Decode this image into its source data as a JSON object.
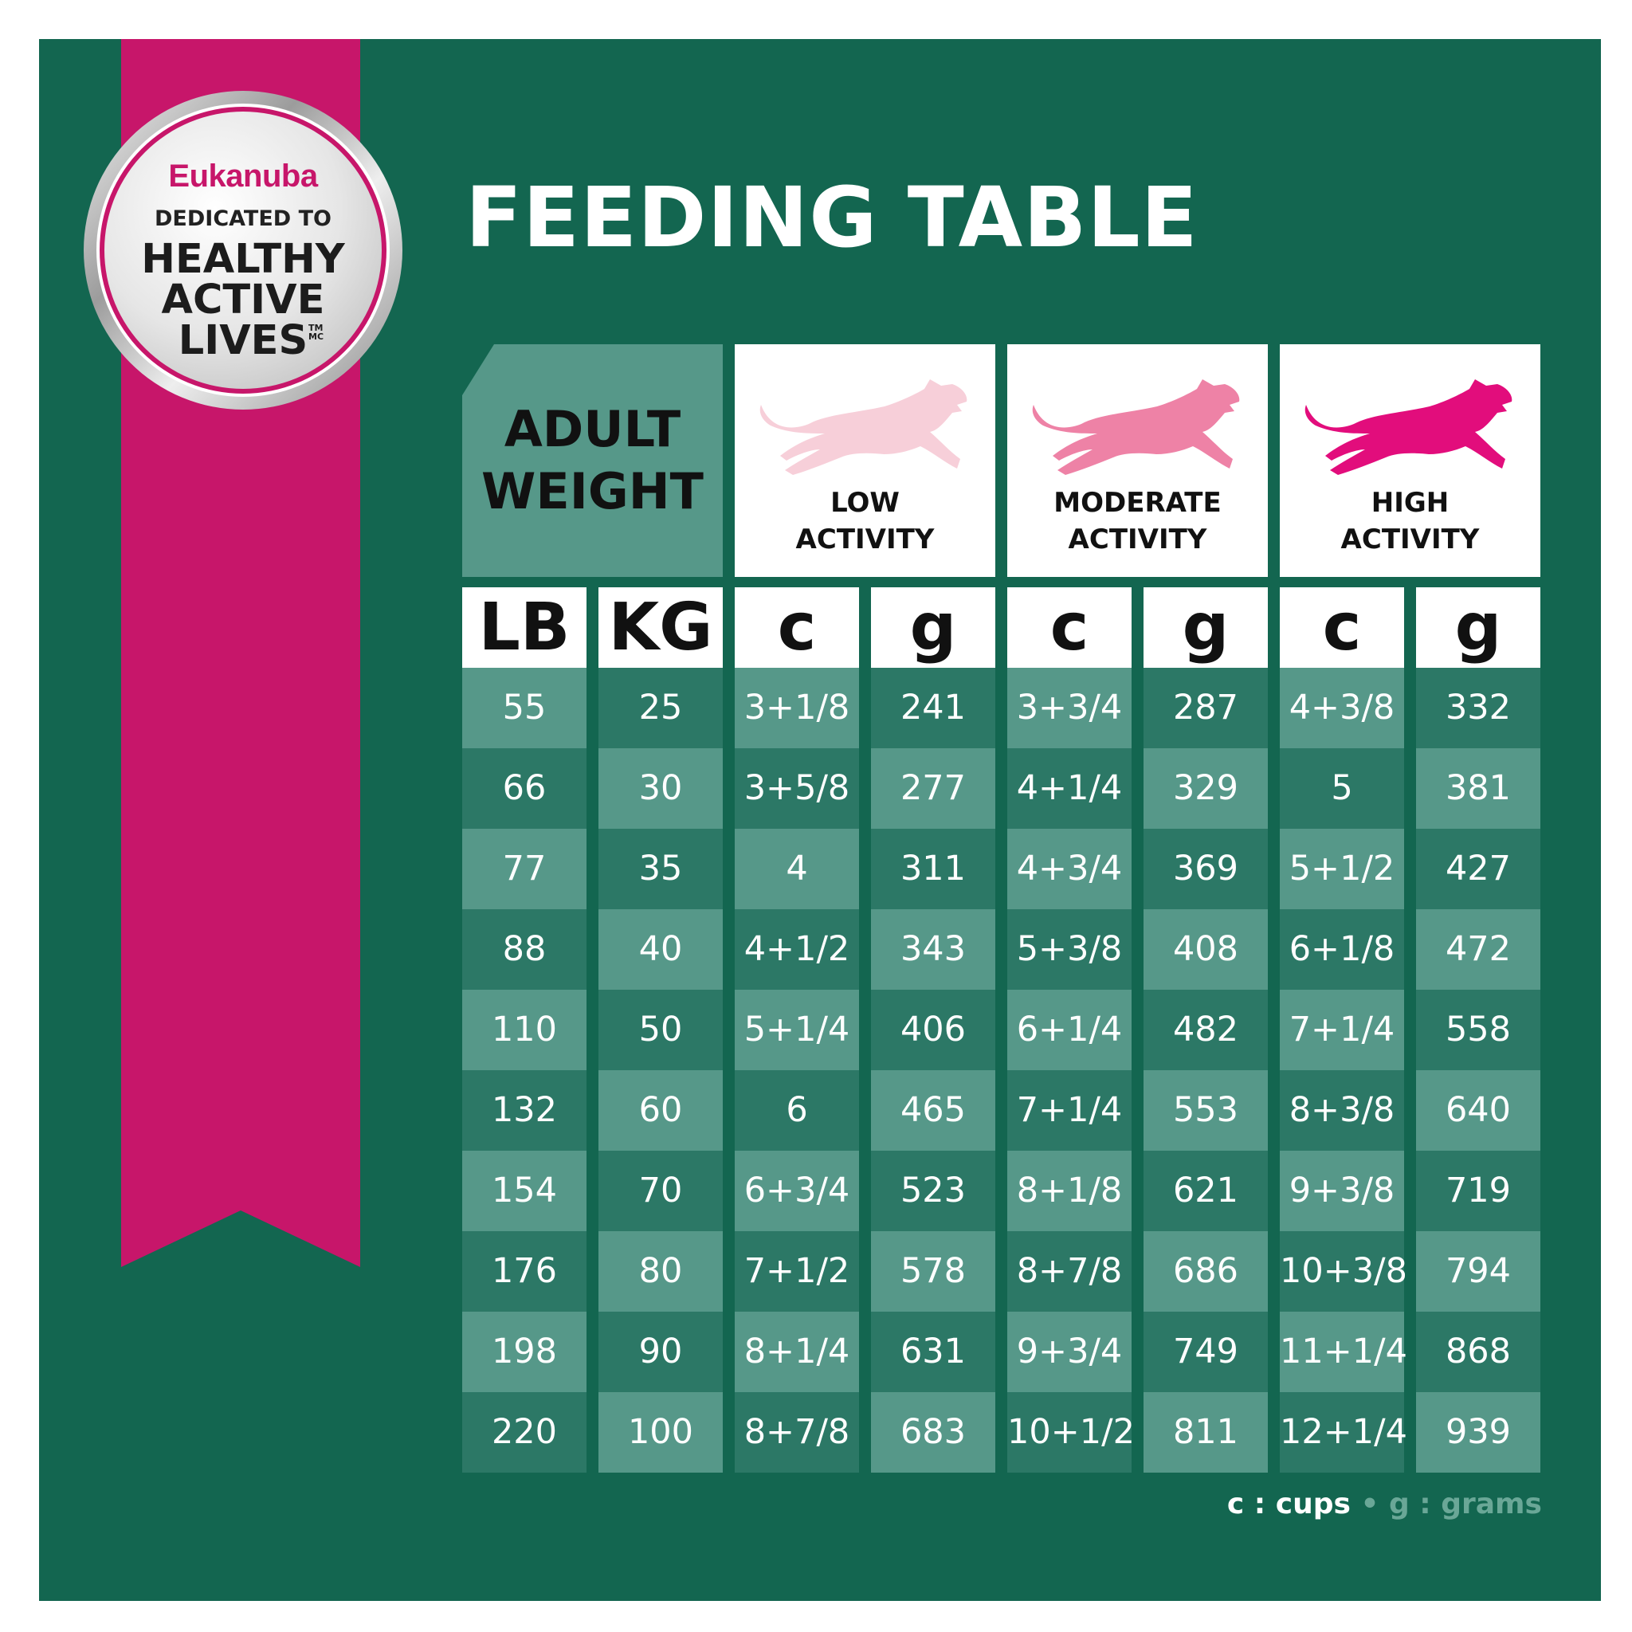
{
  "colors": {
    "background_green": "#136650",
    "ribbon_magenta": "#c7166a",
    "row_light": "#569889",
    "row_dark": "#2c7866",
    "low_dog": "#f7cfd9",
    "moderate_dog": "#ee82a6",
    "high_dog": "#e20d7c"
  },
  "badge": {
    "brand": "Eukanuba",
    "dedicated": "DEDICATED TO",
    "line1": "HEALTHY",
    "line2": "ACTIVE",
    "line3": "LIVES",
    "tm": "TM",
    "mc": "MC"
  },
  "title": "FEEDING TABLE",
  "headers": {
    "weight_line1": "ADULT",
    "weight_line2": "WEIGHT",
    "activities": [
      {
        "line1": "LOW",
        "line2": "ACTIVITY",
        "icon": "running-dog-icon"
      },
      {
        "line1": "MODERATE",
        "line2": "ACTIVITY",
        "icon": "running-dog-icon"
      },
      {
        "line1": "HIGH",
        "line2": "ACTIVITY",
        "icon": "running-dog-icon"
      }
    ],
    "units": [
      "LB",
      "KG",
      "c",
      "g",
      "c",
      "g",
      "c",
      "g"
    ]
  },
  "rows": [
    [
      "55",
      "25",
      "3+1/8",
      "241",
      "3+3/4",
      "287",
      "4+3/8",
      "332"
    ],
    [
      "66",
      "30",
      "3+5/8",
      "277",
      "4+1/4",
      "329",
      "5",
      "381"
    ],
    [
      "77",
      "35",
      "4",
      "311",
      "4+3/4",
      "369",
      "5+1/2",
      "427"
    ],
    [
      "88",
      "40",
      "4+1/2",
      "343",
      "5+3/8",
      "408",
      "6+1/8",
      "472"
    ],
    [
      "110",
      "50",
      "5+1/4",
      "406",
      "6+1/4",
      "482",
      "7+1/4",
      "558"
    ],
    [
      "132",
      "60",
      "6",
      "465",
      "7+1/4",
      "553",
      "8+3/8",
      "640"
    ],
    [
      "154",
      "70",
      "6+3/4",
      "523",
      "8+1/8",
      "621",
      "9+3/8",
      "719"
    ],
    [
      "176",
      "80",
      "7+1/2",
      "578",
      "8+7/8",
      "686",
      "10+3/8",
      "794"
    ],
    [
      "198",
      "90",
      "8+1/4",
      "631",
      "9+3/4",
      "749",
      "11+1/4",
      "868"
    ],
    [
      "220",
      "100",
      "8+7/8",
      "683",
      "10+1/2",
      "811",
      "12+1/4",
      "939"
    ]
  ],
  "legend": {
    "cups": "c : cups",
    "separator": "•",
    "grams": "g : grams"
  }
}
